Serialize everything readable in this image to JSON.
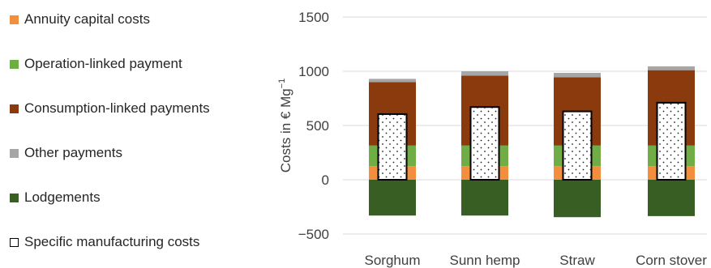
{
  "chart_data": {
    "type": "bar",
    "stacked": true,
    "categories": [
      "Sorghum",
      "Sunn hemp",
      "Straw",
      "Corn stover"
    ],
    "series": [
      {
        "name": "Annuity capital costs",
        "color": "#f28e3c",
        "values": [
          125,
          125,
          125,
          125
        ]
      },
      {
        "name": "Operation-linked payment",
        "color": "#70ad47",
        "values": [
          190,
          190,
          190,
          190
        ]
      },
      {
        "name": "Consumption-linked payments",
        "color": "#8b3a0e",
        "values": [
          585,
          645,
          630,
          695
        ]
      },
      {
        "name": "Other payments",
        "color": "#a6a6a6",
        "values": [
          30,
          40,
          40,
          35
        ]
      },
      {
        "name": "Lodgements",
        "color": "#385e23",
        "values": [
          -330,
          -330,
          -345,
          -335
        ]
      }
    ],
    "overlay": {
      "name": "Specific manufacturing costs",
      "pattern": "dotted",
      "values": [
        605,
        670,
        630,
        710
      ]
    },
    "ylabel": "Costs in € Mg",
    "ylabel_superscript": "−1",
    "yticks": [
      "1500",
      "1000",
      "500",
      "0",
      "−500"
    ],
    "ytick_values": [
      1500,
      1000,
      500,
      0,
      -500
    ],
    "ylim": [
      -500,
      1500
    ],
    "grid": true,
    "legend_position": "left"
  }
}
